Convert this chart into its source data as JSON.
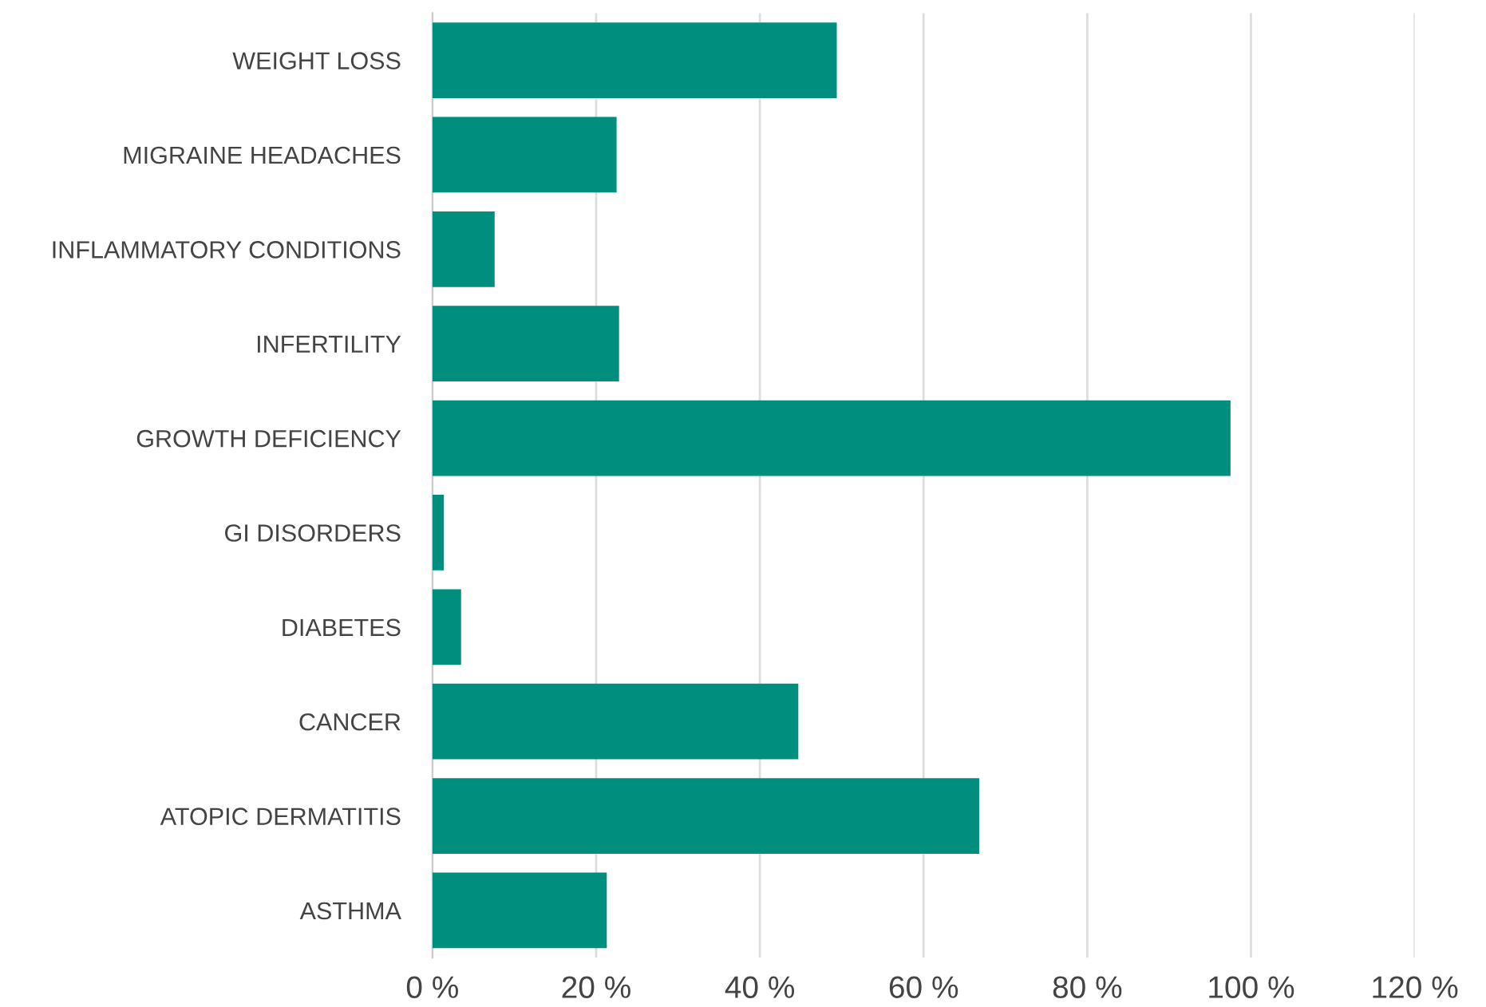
{
  "chart_data": {
    "type": "bar",
    "orientation": "horizontal",
    "categories": [
      "WEIGHT LOSS",
      "MIGRAINE HEADACHES",
      "INFLAMMATORY CONDITIONS",
      "INFERTILITY",
      "GROWTH DEFICIENCY",
      "GI DISORDERS",
      "DIABETES",
      "CANCER",
      "ATOPIC DERMATITIS",
      "ASTHMA"
    ],
    "values": [
      49.4,
      22.5,
      7.6,
      22.8,
      97.5,
      1.4,
      3.5,
      44.7,
      66.8,
      21.3
    ],
    "color": "#008f7f",
    "xlim": [
      0,
      120
    ],
    "xticks": [
      {
        "value": 0,
        "label": "0 %"
      },
      {
        "value": 20,
        "label": "20 %"
      },
      {
        "value": 40,
        "label": "40 %"
      },
      {
        "value": 60,
        "label": "60 %"
      },
      {
        "value": 80,
        "label": "80 %"
      },
      {
        "value": 100,
        "label": "100 %"
      },
      {
        "value": 120,
        "label": "120 %"
      }
    ],
    "grid": "x"
  }
}
